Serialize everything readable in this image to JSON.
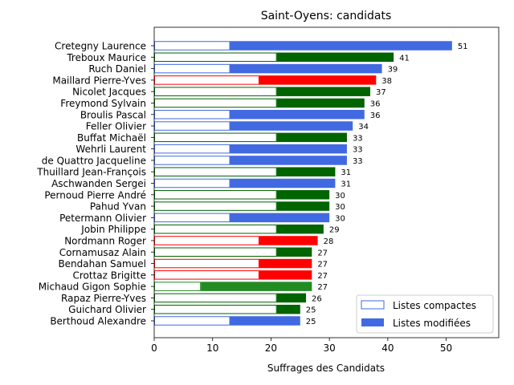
{
  "chart_data": {
    "type": "bar",
    "orientation": "horizontal",
    "title": "Saint-Oyens: candidats",
    "xlabel": "Suffrages des Candidats",
    "ylabel": "",
    "xlim": [
      0,
      59
    ],
    "xticks": [
      0,
      10,
      20,
      30,
      40,
      50
    ],
    "grid": false,
    "legend": {
      "placement": "lower-right",
      "entries": [
        "Listes compactes",
        "Listes modifiées"
      ]
    },
    "colors": {
      "blue": "#4169e1",
      "green": "#006400",
      "red": "#ff0000",
      "forestgreen": "#228b22"
    },
    "candidates": [
      {
        "name": "Cretegny Laurence",
        "compact": 13,
        "total": 51,
        "color": "blue"
      },
      {
        "name": "Treboux Maurice",
        "compact": 21,
        "total": 41,
        "color": "green"
      },
      {
        "name": "Ruch Daniel",
        "compact": 13,
        "total": 39,
        "color": "blue"
      },
      {
        "name": "Maillard Pierre-Yves",
        "compact": 18,
        "total": 38,
        "color": "red"
      },
      {
        "name": "Nicolet Jacques",
        "compact": 21,
        "total": 37,
        "color": "green"
      },
      {
        "name": "Freymond Sylvain",
        "compact": 21,
        "total": 36,
        "color": "green"
      },
      {
        "name": "Broulis Pascal",
        "compact": 13,
        "total": 36,
        "color": "blue"
      },
      {
        "name": "Feller Olivier",
        "compact": 13,
        "total": 34,
        "color": "blue"
      },
      {
        "name": "Buffat Michaël",
        "compact": 21,
        "total": 33,
        "color": "green"
      },
      {
        "name": "Wehrli Laurent",
        "compact": 13,
        "total": 33,
        "color": "blue"
      },
      {
        "name": "de Quattro Jacqueline",
        "compact": 13,
        "total": 33,
        "color": "blue"
      },
      {
        "name": "Thuillard Jean-François",
        "compact": 21,
        "total": 31,
        "color": "green"
      },
      {
        "name": "Aschwanden Sergei",
        "compact": 13,
        "total": 31,
        "color": "blue"
      },
      {
        "name": "Pernoud Pierre André",
        "compact": 21,
        "total": 30,
        "color": "green"
      },
      {
        "name": "Pahud Yvan",
        "compact": 21,
        "total": 30,
        "color": "green"
      },
      {
        "name": "Petermann Olivier",
        "compact": 13,
        "total": 30,
        "color": "blue"
      },
      {
        "name": "Jobin Philippe",
        "compact": 21,
        "total": 29,
        "color": "green"
      },
      {
        "name": "Nordmann Roger",
        "compact": 18,
        "total": 28,
        "color": "red"
      },
      {
        "name": "Cornamusaz Alain",
        "compact": 21,
        "total": 27,
        "color": "green"
      },
      {
        "name": "Bendahan Samuel",
        "compact": 18,
        "total": 27,
        "color": "red"
      },
      {
        "name": "Crottaz Brigitte",
        "compact": 18,
        "total": 27,
        "color": "red"
      },
      {
        "name": "Michaud Gigon Sophie",
        "compact": 8,
        "total": 27,
        "color": "forestgreen"
      },
      {
        "name": "Rapaz Pierre-Yves",
        "compact": 21,
        "total": 26,
        "color": "green"
      },
      {
        "name": "Guichard Olivier",
        "compact": 21,
        "total": 25,
        "color": "green"
      },
      {
        "name": "Berthoud Alexandre",
        "compact": 13,
        "total": 25,
        "color": "blue"
      }
    ]
  }
}
